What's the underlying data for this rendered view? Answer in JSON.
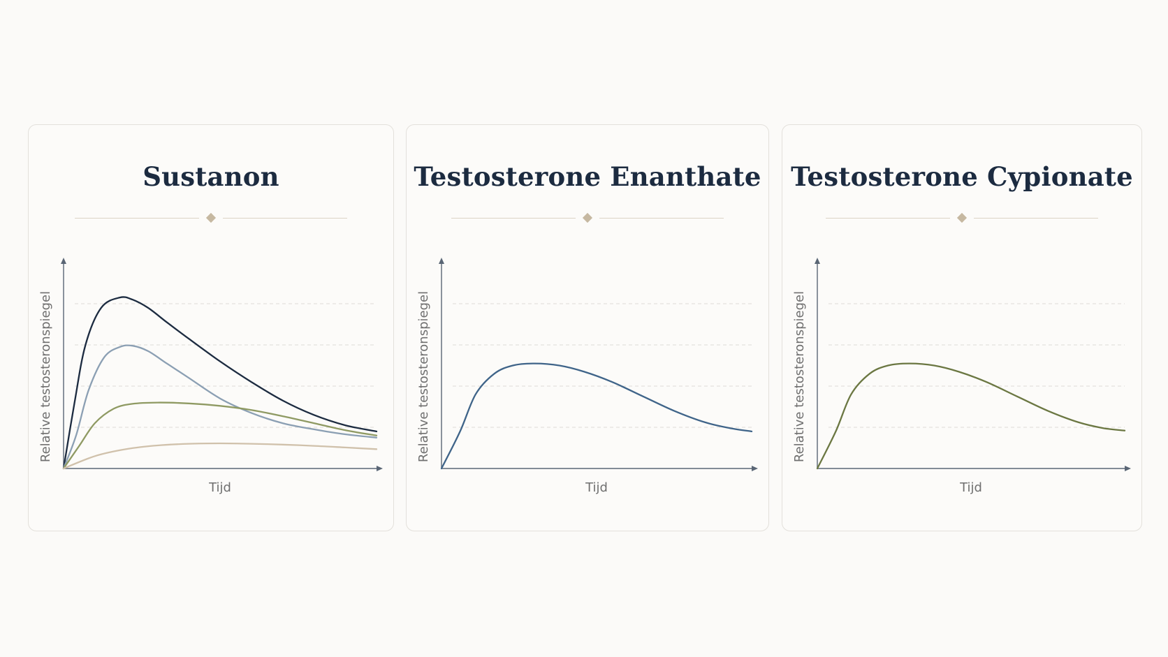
{
  "colors": {
    "navy": "#1c2b40",
    "steel": "#8b9fb3",
    "olive": "#8f9a63",
    "tan": "#d0c1ab",
    "blue": "#3f6489",
    "olive_dark": "#6b7742"
  },
  "chart_data": [
    {
      "type": "line",
      "title": "Sustanon",
      "xlabel": "Tijd",
      "ylabel": "Relative testosteronspiegel",
      "xlim": [
        0,
        10
      ],
      "ylim": [
        0,
        5
      ],
      "grid": true,
      "series": [
        {
          "color": "#1c2b40",
          "x": [
            0,
            0.35,
            0.7,
            1.2,
            1.8,
            2.2,
            2.7,
            3.3,
            4,
            5,
            6,
            7,
            8,
            9,
            10
          ],
          "y": [
            0,
            1.6,
            3.0,
            3.9,
            4.15,
            4.1,
            3.9,
            3.55,
            3.15,
            2.6,
            2.1,
            1.65,
            1.3,
            1.05,
            0.9
          ]
        },
        {
          "color": "#8b9fb3",
          "x": [
            0,
            0.4,
            0.8,
            1.3,
            1.8,
            2.2,
            2.7,
            3.3,
            4,
            5,
            6,
            7,
            8,
            9,
            10
          ],
          "y": [
            0,
            0.8,
            1.9,
            2.7,
            2.95,
            2.98,
            2.85,
            2.55,
            2.2,
            1.7,
            1.35,
            1.1,
            0.95,
            0.83,
            0.75
          ]
        },
        {
          "color": "#8f9a63",
          "x": [
            0,
            0.5,
            1,
            1.6,
            2.2,
            3,
            4,
            5,
            6,
            7,
            8,
            9,
            10
          ],
          "y": [
            0,
            0.55,
            1.1,
            1.45,
            1.57,
            1.6,
            1.58,
            1.52,
            1.42,
            1.27,
            1.1,
            0.93,
            0.8
          ]
        },
        {
          "color": "#d0c1ab",
          "x": [
            0,
            1,
            2,
            3,
            4,
            5,
            6,
            7,
            8,
            9,
            10
          ],
          "y": [
            0,
            0.3,
            0.47,
            0.56,
            0.6,
            0.61,
            0.6,
            0.58,
            0.55,
            0.51,
            0.47
          ]
        }
      ]
    },
    {
      "type": "line",
      "title": "Testosterone Enanthate",
      "xlabel": "Tijd",
      "ylabel": "Relative testosteronspiegel",
      "xlim": [
        0,
        10
      ],
      "ylim": [
        0,
        5
      ],
      "grid": true,
      "series": [
        {
          "color": "#3f6489",
          "x": [
            0,
            0.6,
            1.1,
            1.7,
            2.3,
            3,
            3.8,
            4.6,
            5.5,
            6.5,
            7.5,
            8.5,
            9.3,
            10
          ],
          "y": [
            0,
            0.9,
            1.8,
            2.3,
            2.5,
            2.55,
            2.5,
            2.35,
            2.1,
            1.75,
            1.4,
            1.12,
            0.98,
            0.9
          ]
        }
      ]
    },
    {
      "type": "line",
      "title": "Testosterone Cypionate",
      "xlabel": "Tijd",
      "ylabel": "Relative testosteronspiegel",
      "xlim": [
        0,
        10
      ],
      "ylim": [
        0,
        5
      ],
      "grid": true,
      "series": [
        {
          "color": "#6b7742",
          "x": [
            0,
            0.6,
            1.1,
            1.7,
            2.3,
            3,
            3.8,
            4.6,
            5.5,
            6.5,
            7.5,
            8.5,
            9.3,
            10
          ],
          "y": [
            0,
            0.9,
            1.8,
            2.3,
            2.5,
            2.55,
            2.5,
            2.35,
            2.1,
            1.75,
            1.4,
            1.12,
            0.98,
            0.92
          ]
        }
      ]
    }
  ]
}
